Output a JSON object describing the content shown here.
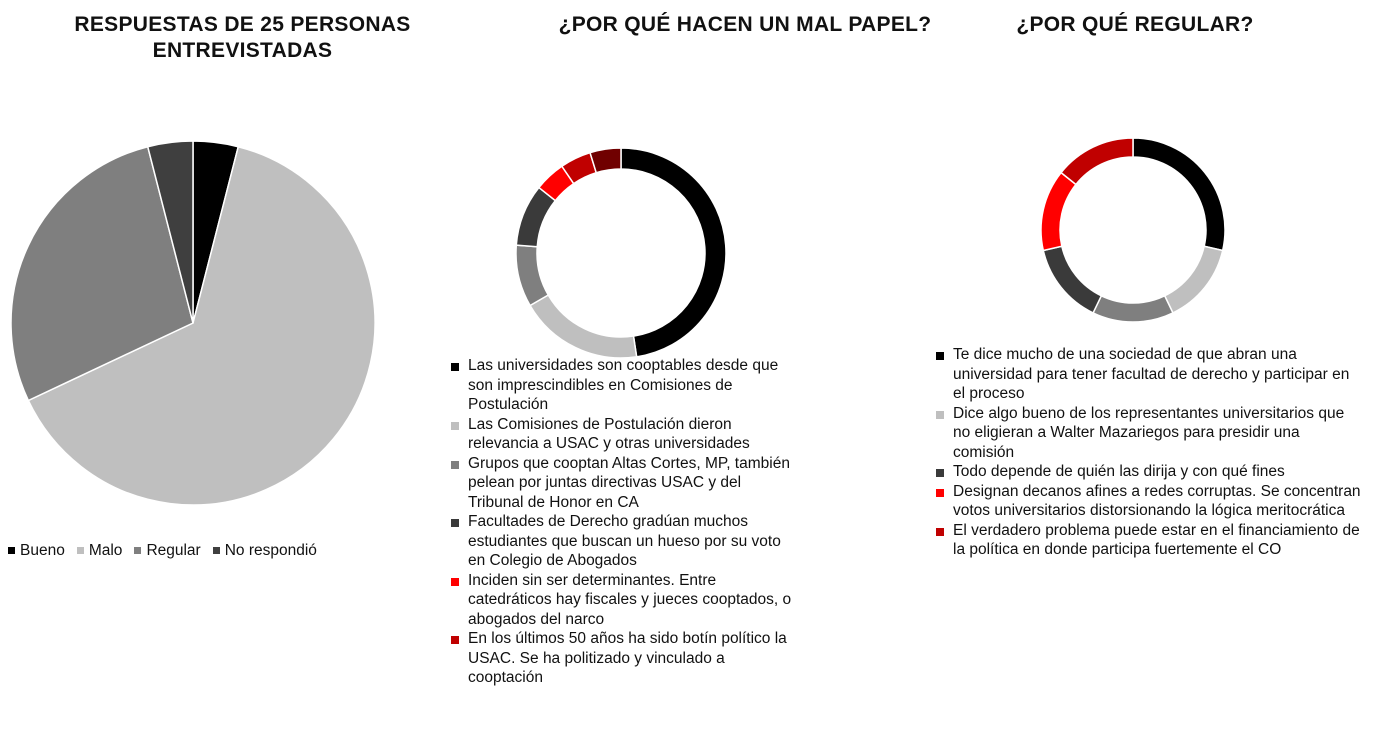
{
  "chart_data": [
    {
      "type": "pie",
      "title": "RESPUESTAS DE 25 PERSONAS ENTREVISTADAS",
      "categories": [
        "Bueno",
        "Malo",
        "Regular",
        "No respondió"
      ],
      "values": [
        1,
        16,
        7,
        1
      ],
      "colors": [
        "#000000",
        "#bfbfbf",
        "#7f7f7f",
        "#3f3f3f"
      ],
      "legend": "bottom"
    },
    {
      "type": "donut",
      "title": "¿POR QUÉ HACEN UN MAL PAPEL?",
      "categories": [
        "Las universidades son cooptables desde que son imprescindibles en Comisiones de Postulación",
        "Las Comisiones de Postulación dieron relevancia a USAC y otras universidades",
        "Grupos que cooptan Altas Cortes, MP, también pelean por juntas directivas USAC y del Tribunal de Honor en CA",
        "Facultades de Derecho gradúan muchos estudiantes que buscan un hueso por su voto en Colegio de Abogados",
        "Inciden sin ser determinantes. Entre catedráticos hay fiscales y jueces cooptados, o abogados del narco",
        "En los últimos 50 años ha sido botín político la USAC. Se ha politizado y vinculado a cooptación",
        null
      ],
      "values": [
        10,
        4,
        2,
        2,
        1,
        1,
        1
      ],
      "colors": [
        "#000000",
        "#bfbfbf",
        "#7f7f7f",
        "#3a3a3a",
        "#ff0000",
        "#c00000",
        "#700000"
      ],
      "legend": "bottom"
    },
    {
      "type": "donut",
      "title": "¿POR QUÉ REGULAR?",
      "categories": [
        "Te dice mucho de una sociedad de que abran una universidad para tener facultad de derecho y participar en el proceso",
        "Dice algo bueno de los representantes universitarios que no eligieran a Walter Mazariegos para presidir una comisión",
        null,
        "Todo depende de quién las dirija y con qué fines",
        "Designan decanos afines a redes corruptas. Se concentran votos universitarios distorsionando la lógica meritocrática",
        "El verdadero problema puede estar en el financiamiento de la política en donde participa fuertemente el CO"
      ],
      "values": [
        2,
        1,
        1,
        1,
        1,
        1
      ],
      "colors": [
        "#000000",
        "#bfbfbf",
        "#7f7f7f",
        "#3a3a3a",
        "#ff0000",
        "#c00000"
      ],
      "legend": "bottom"
    }
  ]
}
